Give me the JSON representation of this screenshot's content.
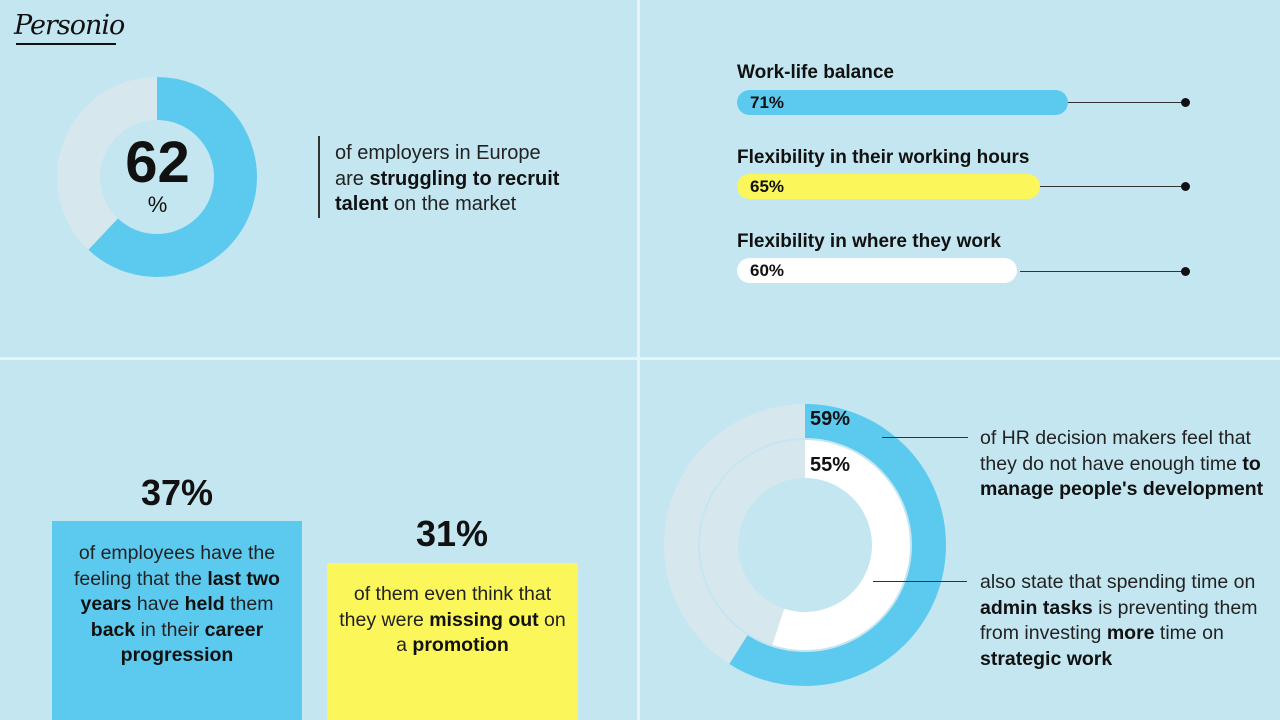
{
  "brand": {
    "logo_text": "Personio"
  },
  "colors": {
    "background": "#c3e6f1",
    "blue": "#5ccaef",
    "yellow": "#fbf75b",
    "white": "#ffffff",
    "grey_ring": "#d6e8ee",
    "dark": "#111111"
  },
  "top_left": {
    "value_text": "62",
    "unit_text": "%",
    "text": [
      {
        "t": "of employers in Europe",
        "b": false
      },
      {
        "t": "are ",
        "b": false
      },
      {
        "t": "struggling to recruit",
        "b": true
      },
      {
        "t": "talent",
        "b": true
      },
      {
        "t": " on the market",
        "b": false
      }
    ]
  },
  "bars": [
    {
      "label": "Work-life balance",
      "value_text": "71%"
    },
    {
      "label": "Flexibility in their working hours",
      "value_text": "65%"
    },
    {
      "label": "Flexibility in where they work",
      "value_text": "60%"
    }
  ],
  "bottom_left": {
    "blue_box": {
      "value_text": "37%",
      "parts": [
        {
          "t": "of employees have the feeling that the ",
          "b": false
        },
        {
          "t": "last two years",
          "b": true
        },
        {
          "t": " have ",
          "b": false
        },
        {
          "t": "held",
          "b": true
        },
        {
          "t": " them ",
          "b": false
        },
        {
          "t": "back",
          "b": true
        },
        {
          "t": " in their ",
          "b": false
        },
        {
          "t": "career progression",
          "b": true
        }
      ]
    },
    "yellow_box": {
      "value_text": "31%",
      "parts": [
        {
          "t": "of them even think that they were ",
          "b": false
        },
        {
          "t": "missing out",
          "b": true
        },
        {
          "t": " on a ",
          "b": false
        },
        {
          "t": "promotion",
          "b": true
        }
      ]
    }
  },
  "bottom_right": {
    "outer_value_text": "59%",
    "inner_value_text": "55%",
    "outer_text": [
      {
        "t": "of HR decision makers feel that they do not have enough time ",
        "b": false
      },
      {
        "t": "to manage people's development",
        "b": true
      }
    ],
    "inner_text": [
      {
        "t": "also state that spending time on ",
        "b": false
      },
      {
        "t": "admin tasks",
        "b": true
      },
      {
        "t": " is preventing them from investing ",
        "b": false
      },
      {
        "t": "more",
        "b": true
      },
      {
        "t": " time on ",
        "b": false
      },
      {
        "t": "strategic work",
        "b": true
      }
    ]
  },
  "chart_data": [
    {
      "type": "pie",
      "values": [
        62,
        38
      ],
      "categories": [
        "",
        ""
      ],
      "title": ""
    },
    {
      "type": "bar",
      "categories": [
        "Work-life balance",
        "Flexibility in their working hours",
        "Flexibility in where they work"
      ],
      "values": [
        71,
        65,
        60
      ],
      "ylim": [
        0,
        100
      ]
    },
    {
      "type": "pie",
      "values": [
        59,
        41
      ],
      "categories": [
        "",
        ""
      ],
      "title": ""
    },
    {
      "type": "pie",
      "values": [
        55,
        45
      ],
      "categories": [
        "",
        ""
      ],
      "title": ""
    }
  ]
}
